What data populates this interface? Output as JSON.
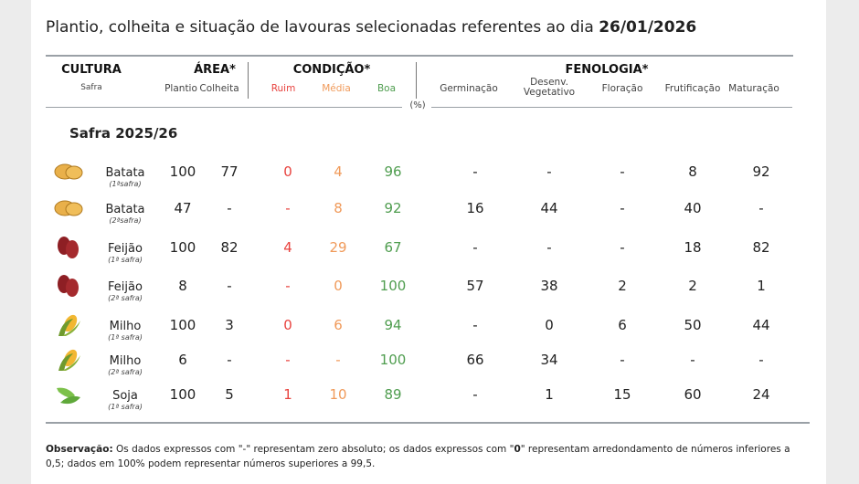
{
  "title": {
    "text": "Plantio, colheita e situação de lavouras selecionadas referentes ao dia ",
    "date": "26/01/2026"
  },
  "headers": {
    "cultura": "CULTURA",
    "safra": "Safra",
    "area": "ÁREA*",
    "plantio": "Plantio",
    "colheita": "Colheita",
    "condicao": "CONDIÇÃO*",
    "ruim": "Ruim",
    "media": "Média",
    "boa": "Boa",
    "fenologia": "FENOLOGIA*",
    "germinacao": "Germinação",
    "desenv1": "Desenv.",
    "desenv2": "Vegetativo",
    "floracao": "Floração",
    "frutificacao": "Frutificação",
    "maturacao": "Maturação",
    "unit": "(%)"
  },
  "section": "Safra 2025/26",
  "colors": {
    "ruim": "#e8433f",
    "media": "#f09a5a",
    "boa": "#4f9d4f"
  },
  "rows": [
    {
      "name": "Batata",
      "safra": "(1ªsafra)",
      "icon": "potato-icon",
      "plantio": "100",
      "colheita": "77",
      "ruim": "0",
      "media": "4",
      "boa": "96",
      "germ": "-",
      "desenv": "-",
      "flor": "-",
      "frut": "8",
      "mat": "92"
    },
    {
      "name": "Batata",
      "safra": "(2ªsafra)",
      "icon": "potato-icon",
      "plantio": "47",
      "colheita": "-",
      "ruim": "-",
      "media": "8",
      "boa": "92",
      "germ": "16",
      "desenv": "44",
      "flor": "-",
      "frut": "40",
      "mat": "-"
    },
    {
      "name": "Feijão",
      "safra": "(1ª safra)",
      "icon": "bean-icon",
      "plantio": "100",
      "colheita": "82",
      "ruim": "4",
      "media": "29",
      "boa": "67",
      "germ": "-",
      "desenv": "-",
      "flor": "-",
      "frut": "18",
      "mat": "82"
    },
    {
      "name": "Feijão",
      "safra": "(2ª safra)",
      "icon": "bean-icon",
      "plantio": "8",
      "colheita": "-",
      "ruim": "-",
      "media": "0",
      "boa": "100",
      "germ": "57",
      "desenv": "38",
      "flor": "2",
      "frut": "2",
      "mat": "1"
    },
    {
      "name": "Milho",
      "safra": "(1ª safra)",
      "icon": "corn-icon",
      "plantio": "100",
      "colheita": "3",
      "ruim": "0",
      "media": "6",
      "boa": "94",
      "germ": "-",
      "desenv": "0",
      "flor": "6",
      "frut": "50",
      "mat": "44"
    },
    {
      "name": "Milho",
      "safra": "(2ª safra)",
      "icon": "corn-icon",
      "plantio": "6",
      "colheita": "-",
      "ruim": "-",
      "media": "-",
      "boa": "100",
      "germ": "66",
      "desenv": "34",
      "flor": "-",
      "frut": "-",
      "mat": "-"
    },
    {
      "name": "Soja",
      "safra": "(1ª safra)",
      "icon": "soy-icon",
      "plantio": "100",
      "colheita": "5",
      "ruim": "1",
      "media": "10",
      "boa": "89",
      "germ": "-",
      "desenv": "1",
      "flor": "15",
      "frut": "60",
      "mat": "24"
    }
  ],
  "note": {
    "label": "Observação:",
    "text1": " Os dados expressos com \"-\" representam zero absoluto; os dados expressos com \"",
    "zero": "0",
    "text2": "\" representam arredondamento de números inferiores a 0,5; dados em 100% podem representar números superiores a 99,5."
  }
}
